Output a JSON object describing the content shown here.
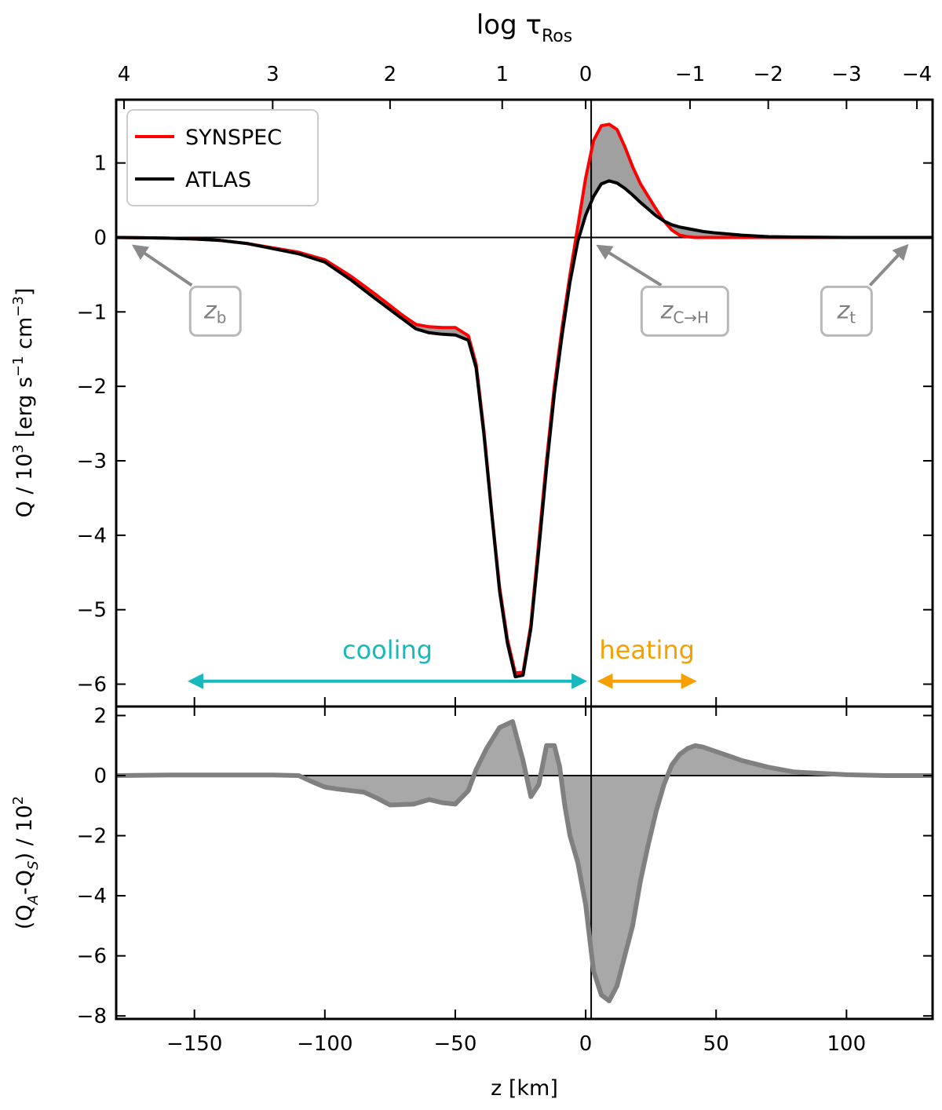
{
  "chart_data": [
    {
      "type": "line",
      "panel": "top",
      "top_axis": {
        "label_main": "log τ",
        "label_sub": "Ros",
        "ticks": [
          {
            "label": "4",
            "z": -177
          },
          {
            "label": "3",
            "z": -120
          },
          {
            "label": "2",
            "z": -75
          },
          {
            "label": "1",
            "z": -32
          },
          {
            "label": "0",
            "z": 0
          },
          {
            "label": "−1",
            "z": 40
          },
          {
            "label": "−2",
            "z": 70
          },
          {
            "label": "−3",
            "z": 100
          },
          {
            "label": "−4",
            "z": 127
          }
        ]
      },
      "ylabel": {
        "main": "Q / 10",
        "exp": "3",
        "units_a": " [erg s",
        "exp2": "−1",
        "units_b": " cm",
        "exp3": "−3",
        "units_c": "]"
      },
      "xlim": [
        -180,
        133
      ],
      "ylim": [
        -6.3,
        1.85
      ],
      "yticks": [
        {
          "value": 1,
          "label": "1"
        },
        {
          "value": 0,
          "label": "0"
        },
        {
          "value": -1,
          "label": "−1"
        },
        {
          "value": -2,
          "label": "−2"
        },
        {
          "value": -3,
          "label": "−3"
        },
        {
          "value": -4,
          "label": "−4"
        },
        {
          "value": -5,
          "label": "−5"
        },
        {
          "value": -6,
          "label": "−6"
        }
      ],
      "series": [
        {
          "name": "SYNSPEC",
          "color": "#ff0000",
          "x": [
            -180,
            -170,
            -160,
            -150,
            -140,
            -130,
            -120,
            -110,
            -100,
            -90,
            -80,
            -70,
            -65,
            -60,
            -55,
            -50,
            -45,
            -42,
            -39,
            -36,
            -33,
            -30,
            -27,
            -24,
            -21,
            -18,
            -15,
            -12,
            -9,
            -6,
            -3,
            0,
            3,
            6,
            9,
            12,
            15,
            18,
            21,
            24,
            27,
            30,
            33,
            36,
            39,
            42,
            45,
            50,
            60,
            70,
            80,
            100,
            133
          ],
          "y": [
            0,
            -0.005,
            -0.01,
            -0.02,
            -0.04,
            -0.08,
            -0.14,
            -0.2,
            -0.3,
            -0.52,
            -0.78,
            -1.05,
            -1.17,
            -1.2,
            -1.21,
            -1.21,
            -1.32,
            -1.7,
            -2.6,
            -3.7,
            -4.7,
            -5.4,
            -5.85,
            -5.84,
            -5.2,
            -4.1,
            -3.0,
            -2.0,
            -1.2,
            -0.5,
            0.15,
            0.8,
            1.3,
            1.5,
            1.52,
            1.45,
            1.22,
            0.95,
            0.72,
            0.55,
            0.38,
            0.22,
            0.1,
            0.03,
            0.01,
            0,
            0,
            0,
            0,
            0,
            0,
            0,
            0
          ]
        },
        {
          "name": "ATLAS",
          "color": "#000000",
          "x": [
            -180,
            -170,
            -160,
            -150,
            -140,
            -130,
            -120,
            -110,
            -100,
            -90,
            -80,
            -70,
            -65,
            -60,
            -55,
            -50,
            -45,
            -42,
            -39,
            -36,
            -33,
            -30,
            -27,
            -24,
            -21,
            -18,
            -15,
            -12,
            -9,
            -6,
            -3,
            0,
            3,
            6,
            9,
            12,
            15,
            18,
            21,
            24,
            27,
            30,
            33,
            36,
            39,
            42,
            45,
            50,
            60,
            70,
            80,
            100,
            133
          ],
          "y": [
            0,
            -0.005,
            -0.01,
            -0.02,
            -0.04,
            -0.08,
            -0.15,
            -0.22,
            -0.33,
            -0.57,
            -0.84,
            -1.1,
            -1.23,
            -1.28,
            -1.3,
            -1.31,
            -1.38,
            -1.75,
            -2.65,
            -3.72,
            -4.75,
            -5.45,
            -5.9,
            -5.88,
            -5.25,
            -4.2,
            -3.1,
            -2.1,
            -1.3,
            -0.6,
            -0.05,
            0.3,
            0.55,
            0.72,
            0.76,
            0.73,
            0.66,
            0.57,
            0.47,
            0.38,
            0.29,
            0.22,
            0.17,
            0.14,
            0.12,
            0.1,
            0.08,
            0.06,
            0.03,
            0.01,
            0.005,
            0,
            0
          ]
        }
      ],
      "legend": {
        "location": "top-left",
        "entries": [
          {
            "label": "SYNSPEC",
            "color": "#ff0000"
          },
          {
            "label": "ATLAS",
            "color": "#000000"
          }
        ]
      },
      "fill_between": {
        "color": "#a0a0a0"
      },
      "vline_z": 0,
      "hline_y": 0,
      "annotations": [
        {
          "id": "zb",
          "text": "z",
          "sub": "b",
          "arrow_to": {
            "z": -173,
            "q": -0.12
          },
          "box_center": {
            "z": -142,
            "q": -0.98
          }
        },
        {
          "id": "zch",
          "text": "z",
          "sub": "C→H",
          "arrow_to": {
            "z": 5,
            "q": -0.12
          },
          "box_center": {
            "z": 38,
            "q": -0.98
          }
        },
        {
          "id": "zt",
          "text": "z",
          "sub": "t",
          "arrow_to": {
            "z": 123,
            "q": -0.12
          },
          "box_center": {
            "z": 100,
            "q": -0.98
          }
        }
      ],
      "ranges": [
        {
          "label": "cooling",
          "color": "#17b9bd",
          "from": -152,
          "to": 0,
          "y": -5.96,
          "label_y": -5.55
        },
        {
          "label": "heating",
          "color": "#f5a000",
          "from": 5,
          "to": 42,
          "y": -5.96,
          "label_y": -5.55
        }
      ]
    },
    {
      "type": "area",
      "panel": "bottom",
      "xlabel": "z [km]",
      "ylabel": {
        "a": "(Q",
        "sub_a": "A",
        "b": "-Q",
        "sub_b": "S",
        "c": ") / 10",
        "exp": "2"
      },
      "xlim": [
        -180,
        133
      ],
      "ylim": [
        -8.1,
        2.3
      ],
      "xticks": [
        {
          "value": -150,
          "label": "−150"
        },
        {
          "value": -100,
          "label": "−100"
        },
        {
          "value": -50,
          "label": "−50"
        },
        {
          "value": 0,
          "label": "0"
        },
        {
          "value": 50,
          "label": "50"
        },
        {
          "value": 100,
          "label": "100"
        }
      ],
      "yticks": [
        {
          "value": 2,
          "label": "2"
        },
        {
          "value": 0,
          "label": "0"
        },
        {
          "value": -2,
          "label": "−2"
        },
        {
          "value": -4,
          "label": "−4"
        },
        {
          "value": -6,
          "label": "−6"
        },
        {
          "value": -8,
          "label": "−8"
        }
      ],
      "series": [
        {
          "name": "difference",
          "color": "#808080",
          "fill": "#a8a8a8",
          "x": [
            -180,
            -160,
            -140,
            -120,
            -110,
            -105,
            -100,
            -95,
            -90,
            -85,
            -80,
            -75,
            -72,
            -66,
            -60,
            -55,
            -50,
            -45,
            -42,
            -38,
            -33,
            -28,
            -24,
            -21,
            -18,
            -15,
            -12,
            -10,
            -8,
            -6,
            -3,
            0,
            3,
            6,
            9,
            12,
            15,
            18,
            21,
            24,
            27,
            30,
            33,
            36,
            39,
            42,
            45,
            50,
            55,
            60,
            70,
            80,
            100,
            115,
            133
          ],
          "y": [
            0,
            0.02,
            0.02,
            0.02,
            0,
            -0.2,
            -0.38,
            -0.45,
            -0.5,
            -0.55,
            -0.75,
            -0.98,
            -0.97,
            -0.95,
            -0.8,
            -0.9,
            -0.95,
            -0.5,
            0.2,
            0.9,
            1.6,
            1.8,
            0.5,
            -0.7,
            -0.3,
            1.0,
            1.0,
            0.3,
            -1.0,
            -2.0,
            -2.9,
            -4.3,
            -6.5,
            -7.3,
            -7.5,
            -7.0,
            -6.0,
            -5.0,
            -3.5,
            -2.3,
            -1.2,
            -0.3,
            0.35,
            0.7,
            0.9,
            1.0,
            0.95,
            0.8,
            0.65,
            0.5,
            0.28,
            0.12,
            0.03,
            0,
            0
          ]
        }
      ],
      "vline_z": 0,
      "hline_y": 0
    }
  ]
}
